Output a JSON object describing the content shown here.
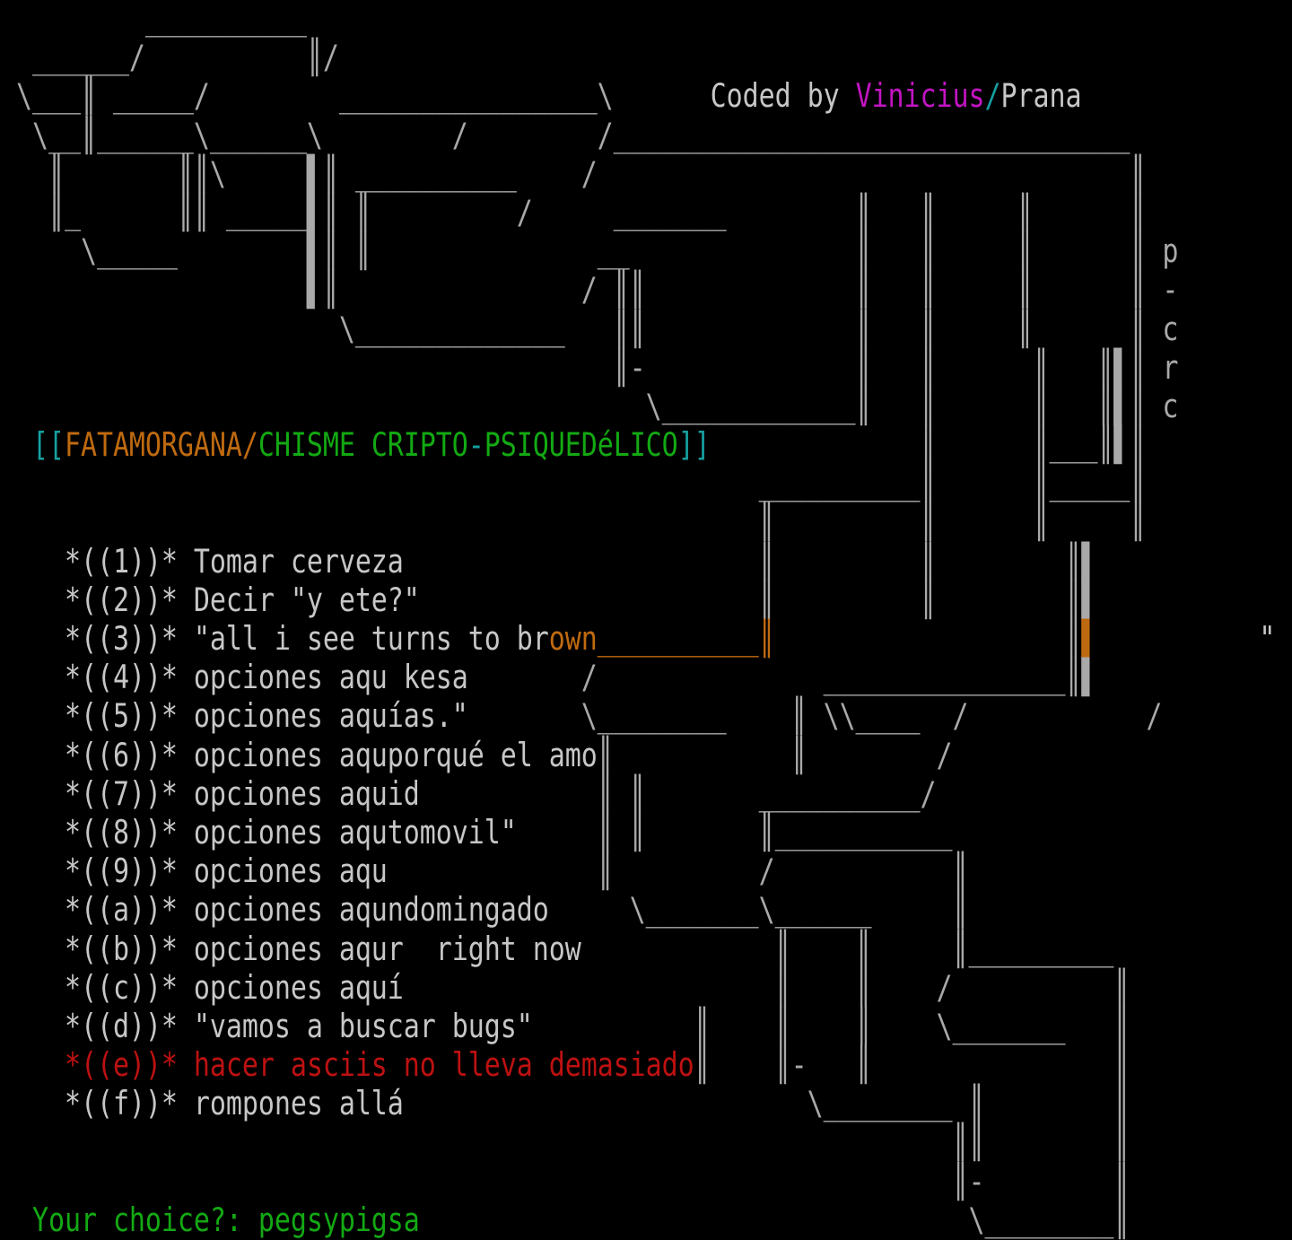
{
  "colors": {
    "background": "#000000",
    "art_gray": "#a9a9a9",
    "text_gray": "#c7c7c7",
    "orange": "#bf6a10",
    "green": "#13a913",
    "red": "#bd1111",
    "magenta": "#c214c2",
    "cyan": "#16a0a0"
  },
  "header": {
    "credit_prefix": "Coded by ",
    "credit_coder": "Vinicius",
    "credit_separator": "/",
    "credit_group": "Prana"
  },
  "banner": {
    "open_brackets": "[[",
    "board_name": "FATAMORGANA/",
    "chat_part_1": "CHISME CRIPTO",
    "hyphen": "-",
    "chat_part_2": "PSIQUEDéLICO",
    "close_brackets": "]]"
  },
  "vertical_label": [
    "p",
    "-",
    "c",
    "r",
    "c"
  ],
  "menu": {
    "items": [
      {
        "key": "1",
        "label": "Tomar cerveza",
        "color": "gray"
      },
      {
        "key": "2",
        "label": "Decir \"y ete?\"",
        "color": "gray"
      },
      {
        "key": "3",
        "label": "\"all i see turns to brown__________",
        "color": "gray+orange"
      },
      {
        "key": "4",
        "label": "opciones aqu kesa",
        "color": "gray"
      },
      {
        "key": "5",
        "label": "opciones aquías.\"",
        "color": "gray"
      },
      {
        "key": "6",
        "label": "opciones aquporqué el amo",
        "color": "gray"
      },
      {
        "key": "7",
        "label": "opciones aquid",
        "color": "gray"
      },
      {
        "key": "8",
        "label": "opciones aqutomovil\"",
        "color": "gray"
      },
      {
        "key": "9",
        "label": "opciones aqu",
        "color": "gray"
      },
      {
        "key": "a",
        "label": "opciones aqundomingado",
        "color": "gray"
      },
      {
        "key": "b",
        "label": "opciones aqur  right now",
        "color": "gray"
      },
      {
        "key": "c",
        "label": "opciones aquí",
        "color": "gray"
      },
      {
        "key": "d",
        "label": "\"vamos a buscar bugs\"",
        "color": "gray"
      },
      {
        "key": "e",
        "label": "hacer asciis no lleva demasiado",
        "color": "red"
      },
      {
        "key": "f",
        "label": "rompones allá",
        "color": "gray"
      }
    ]
  },
  "prompt": {
    "label": "Your choice?:",
    "value": "pegsypigsa"
  },
  "screen": {
    "cols": 80,
    "rows": [
      [
        [
          "         __________"
        ]
      ],
      [
        [
          "  ______/          ║/"
        ]
      ],
      [
        [
          " \\___║ _____/        ________________\\      ",
          "a"
        ],
        [
          "Coded by ",
          "t",
          "credit-prefix"
        ],
        [
          "Vinicius",
          "m",
          "credit-coder"
        ],
        [
          "/",
          "c",
          "credit-separator"
        ],
        [
          "Prana",
          "t",
          "credit-group"
        ]
      ],
      [
        [
          "  \\__║______\\______\\        /        /________________________________"
        ]
      ],
      [
        [
          "   ║       ║║\\     ▌║ __________    /                                 ║"
        ]
      ],
      [
        [
          "   ║_      ║║ _____▌║ ║         /     _______        ║   ║     ║      ║"
        ]
      ],
      [
        [
          "     \\_____        ▌║ ║              __              ║   ║     ║      ║ ",
          "a"
        ],
        [
          "p",
          "a",
          "vertical-label-letter"
        ]
      ],
      [
        [
          "                   ▌║               / ║║             ║   ║     ║      ║ ",
          "a"
        ],
        [
          "-",
          "a",
          "vertical-label-letter"
        ]
      ],
      [
        [
          "                     \\_____________   ║║             ║   ║     ║      ║ ",
          "a"
        ],
        [
          "c",
          "a",
          "vertical-label-letter"
        ]
      ],
      [
        [
          "                                      ║-             ║   ║      ║   ║▌║ ",
          "a"
        ],
        [
          "r",
          "a",
          "vertical-label-letter"
        ]
      ],
      [
        [
          "                                        \\____________║   ║      ║   ║▌║ ",
          "a"
        ],
        [
          "c",
          "a",
          "vertical-label-letter"
        ]
      ],
      [
        [
          "  ",
          "a"
        ],
        [
          "[[",
          "c",
          "banner-open-brackets"
        ],
        [
          "FATAMORGANA/",
          "o",
          "banner-board-name"
        ],
        [
          "CHISME CRIPTO",
          "g",
          "banner-chat-1"
        ],
        [
          "-",
          "c",
          "banner-hyphen"
        ],
        [
          "PSIQUEDéLICO",
          "g",
          "banner-chat-2"
        ],
        [
          "]]",
          "c",
          "banner-close-brackets"
        ],
        [
          "             ║      ║___║▌║",
          "a"
        ]
      ],
      [
        [
          "                                               __________║      ║_____║"
        ]
      ],
      [
        [
          "                                               ║         ║      ║     ║"
        ]
      ],
      [
        [
          "    ",
          "a"
        ],
        [
          "*((1))* Tomar cerveza",
          "t",
          "menu-item-1"
        ],
        [
          "                      ║         ║        ║▌",
          "a"
        ]
      ],
      [
        [
          "    ",
          "a"
        ],
        [
          "*((2))* Decir \"y ete?\"",
          "t",
          "menu-item-2"
        ],
        [
          "                     ║         ║        ║▌",
          "a"
        ]
      ],
      [
        [
          "    ",
          "a"
        ],
        [
          "*((3))* \"all i see turns to br",
          "t",
          "menu-item-3"
        ],
        [
          "own__________║",
          "o",
          "menu-item-3-highlight"
        ],
        [
          "                  ║",
          "a"
        ],
        [
          "▌",
          "o"
        ],
        [
          "          \"",
          "t"
        ]
      ],
      [
        [
          "    ",
          "a"
        ],
        [
          "*((4))* opciones aqu kesa",
          "t",
          "menu-item-4"
        ],
        [
          "       /              _______________║▌",
          "a"
        ]
      ],
      [
        [
          "    ",
          "a"
        ],
        [
          "*((5))* opciones aquías.\"",
          "t",
          "menu-item-5"
        ],
        [
          "       \\________    ║ \\\\____  /           /",
          "a"
        ]
      ],
      [
        [
          "    ",
          "a"
        ],
        [
          "*((6))* opciones aquporqué el amo",
          "t",
          "menu-item-6"
        ],
        [
          "║           ║        /",
          "a"
        ]
      ],
      [
        [
          "    ",
          "a"
        ],
        [
          "*((7))* opciones aquid",
          "t",
          "menu-item-7"
        ],
        [
          "           ║ ║       __________/",
          "a"
        ]
      ],
      [
        [
          "    ",
          "a"
        ],
        [
          "*((8))* opciones aqutomovil\"",
          "t",
          "menu-item-8"
        ],
        [
          "     ║ ║       ║___________",
          "a"
        ]
      ],
      [
        [
          "    ",
          "a"
        ],
        [
          "*((9))* opciones aqu",
          "t",
          "menu-item-9"
        ],
        [
          "             ║         /           ║",
          "a"
        ]
      ],
      [
        [
          "    ",
          "a"
        ],
        [
          "*((a))* opciones aqundomingado",
          "t",
          "menu-item-a"
        ],
        [
          "     \\_______\\______     ║",
          "a"
        ]
      ],
      [
        [
          "    ",
          "a"
        ],
        [
          "*((b))* opciones aqur  right now",
          "t",
          "menu-item-b"
        ],
        [
          "            ║    ║     ║_________",
          "a"
        ]
      ],
      [
        [
          "    ",
          "a"
        ],
        [
          "*((c))* opciones aquí",
          "t",
          "menu-item-c"
        ],
        [
          "                       ║    ║    /          ║",
          "a"
        ]
      ],
      [
        [
          "    ",
          "a"
        ],
        [
          "*((d))* \"vamos a buscar bugs\"",
          "t",
          "menu-item-d"
        ],
        [
          "          ║    ║    ║    \\_______   ║",
          "a"
        ]
      ],
      [
        [
          "    ",
          "a"
        ],
        [
          "*((e))* hacer asciis no lleva demasiado",
          "r",
          "menu-item-e"
        ],
        [
          "║    ║-   ║               ║",
          "a"
        ]
      ],
      [
        [
          "    ",
          "a"
        ],
        [
          "*((f))* rompones allá",
          "t",
          "menu-item-f"
        ],
        [
          "                         \\________ ║        ║",
          "a"
        ]
      ],
      [
        [
          "                                                           ║║        ║"
        ]
      ],
      [
        [
          "                                                           ║-        ║"
        ]
      ],
      [
        [
          "  ",
          "a"
        ],
        [
          "Your choice?: pegsypigsa",
          "g",
          "prompt-text"
        ],
        [
          "                                  \\________║",
          "a"
        ]
      ]
    ]
  }
}
